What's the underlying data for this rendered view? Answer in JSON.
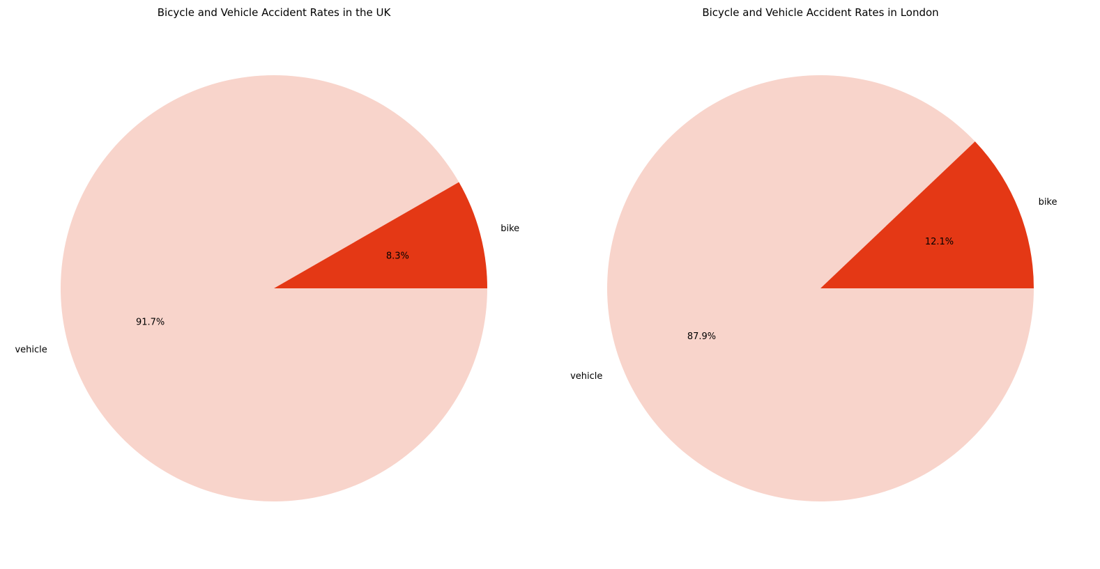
{
  "chart_data": [
    {
      "type": "pie",
      "title": "Bicycle and Vehicle Accident Rates in the UK",
      "labels": [
        "bike",
        "vehicle"
      ],
      "values": [
        8.3,
        91.7
      ],
      "percent_labels": [
        "8.3%",
        "91.7%"
      ],
      "colors": [
        "#e43815",
        "#f8d4cb"
      ],
      "start_angle_deg": 0,
      "direction": "counterclockwise",
      "legend": "none"
    },
    {
      "type": "pie",
      "title": "Bicycle and Vehicle Accident Rates in London",
      "labels": [
        "bike",
        "vehicle"
      ],
      "values": [
        12.1,
        87.9
      ],
      "percent_labels": [
        "12.1%",
        "87.9%"
      ],
      "colors": [
        "#e43815",
        "#f8d4cb"
      ],
      "start_angle_deg": 0,
      "direction": "counterclockwise",
      "legend": "none"
    }
  ]
}
